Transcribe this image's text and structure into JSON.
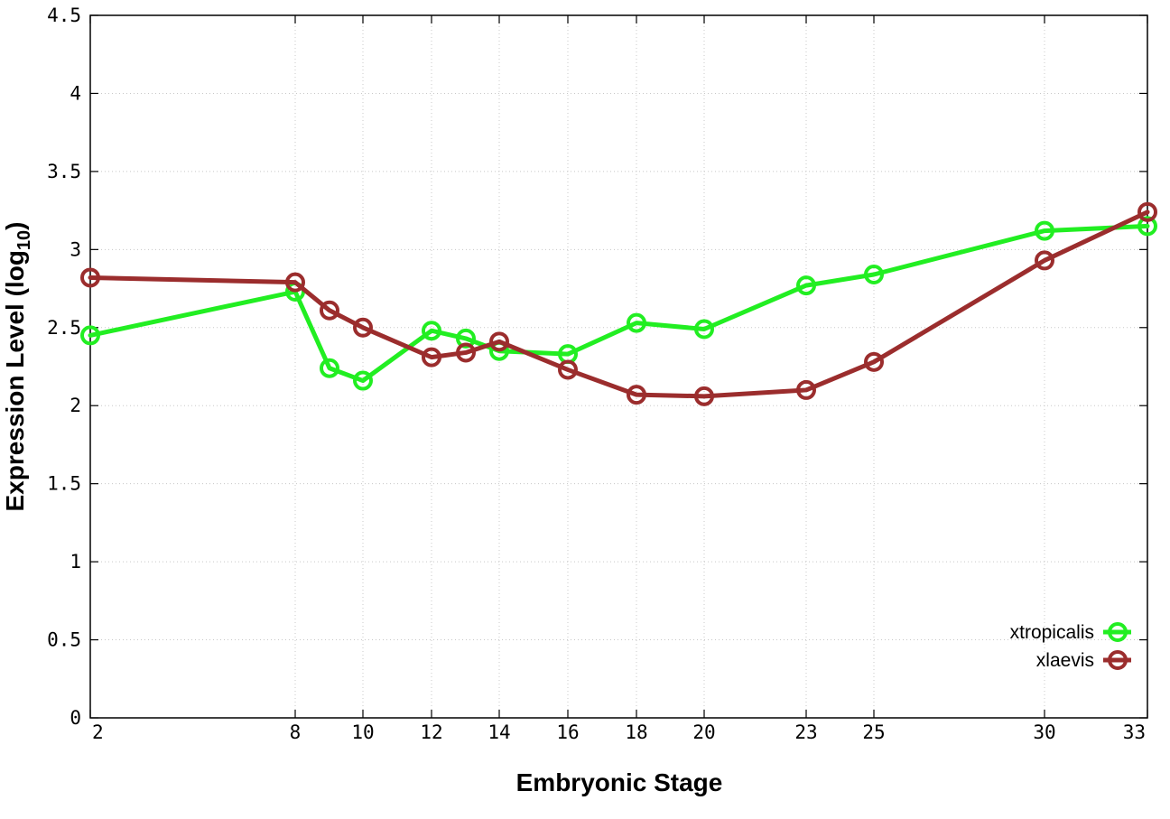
{
  "chart_data": {
    "type": "line",
    "xlabel": "Embryonic Stage",
    "ylabel": "Expression Level (log",
    "ylabel_subscript": "10",
    "ylabel_close": ")",
    "x_categories": [
      "2",
      "8",
      "9",
      "10",
      "12",
      "13",
      "14",
      "16",
      "18",
      "20",
      "23",
      "25",
      "30",
      "33"
    ],
    "x_ticks": [
      "2",
      "8",
      "10",
      "12",
      "14",
      "16",
      "18",
      "20",
      "23",
      "25",
      "30",
      "33"
    ],
    "yticks": [
      "0",
      "0.5",
      "1",
      "1.5",
      "2",
      "2.5",
      "3",
      "3.5",
      "4",
      "4.5"
    ],
    "ylim": [
      0,
      4.5
    ],
    "grid": true,
    "legend_position": "bottom-right",
    "series": [
      {
        "name": "xtropicalis",
        "color": "#22ee22",
        "values": [
          2.45,
          2.73,
          2.24,
          2.16,
          2.48,
          2.43,
          2.35,
          2.33,
          2.53,
          2.49,
          2.77,
          2.84,
          3.12,
          3.15
        ]
      },
      {
        "name": "xlaevis",
        "color": "#9b2d2d",
        "values": [
          2.82,
          2.79,
          2.61,
          2.5,
          2.31,
          2.34,
          2.41,
          2.23,
          2.07,
          2.06,
          2.1,
          2.28,
          2.93,
          3.24
        ]
      }
    ]
  }
}
